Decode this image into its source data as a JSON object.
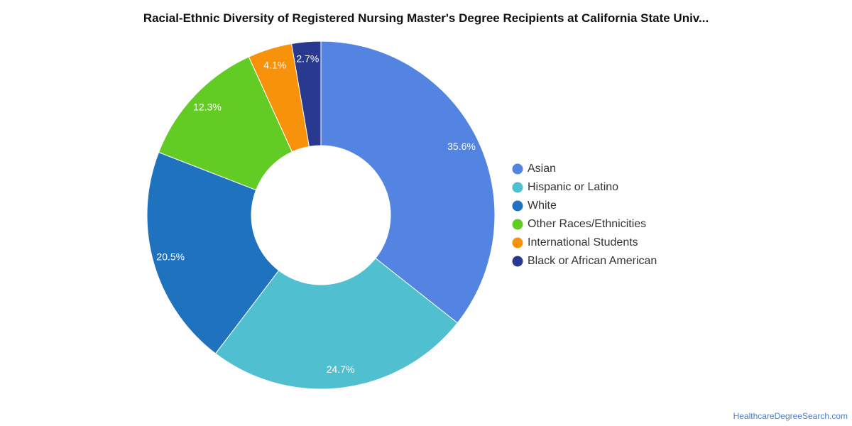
{
  "chart_data": {
    "type": "pie",
    "donut": true,
    "title": "Racial-Ethnic Diversity of Registered Nursing Master's Degree Recipients at California State Univ...",
    "legend_position": "right",
    "slices": [
      {
        "label": "Asian",
        "value": 35.6,
        "value_label": "35.6%",
        "color": "#5384e2"
      },
      {
        "label": "Hispanic or Latino",
        "value": 24.7,
        "value_label": "24.7%",
        "color": "#50bfcf"
      },
      {
        "label": "White",
        "value": 20.5,
        "value_label": "20.5%",
        "color": "#1f72bd"
      },
      {
        "label": "Other Races/Ethnicities",
        "value": 12.3,
        "value_label": "12.3%",
        "color": "#62cc24"
      },
      {
        "label": "International Students",
        "value": 4.1,
        "value_label": "4.1%",
        "color": "#f7920a"
      },
      {
        "label": "Black or African American",
        "value": 2.7,
        "value_label": "2.7%",
        "color": "#2a3990"
      }
    ]
  },
  "footer": {
    "source": "HealthcareDegreeSearch.com"
  }
}
